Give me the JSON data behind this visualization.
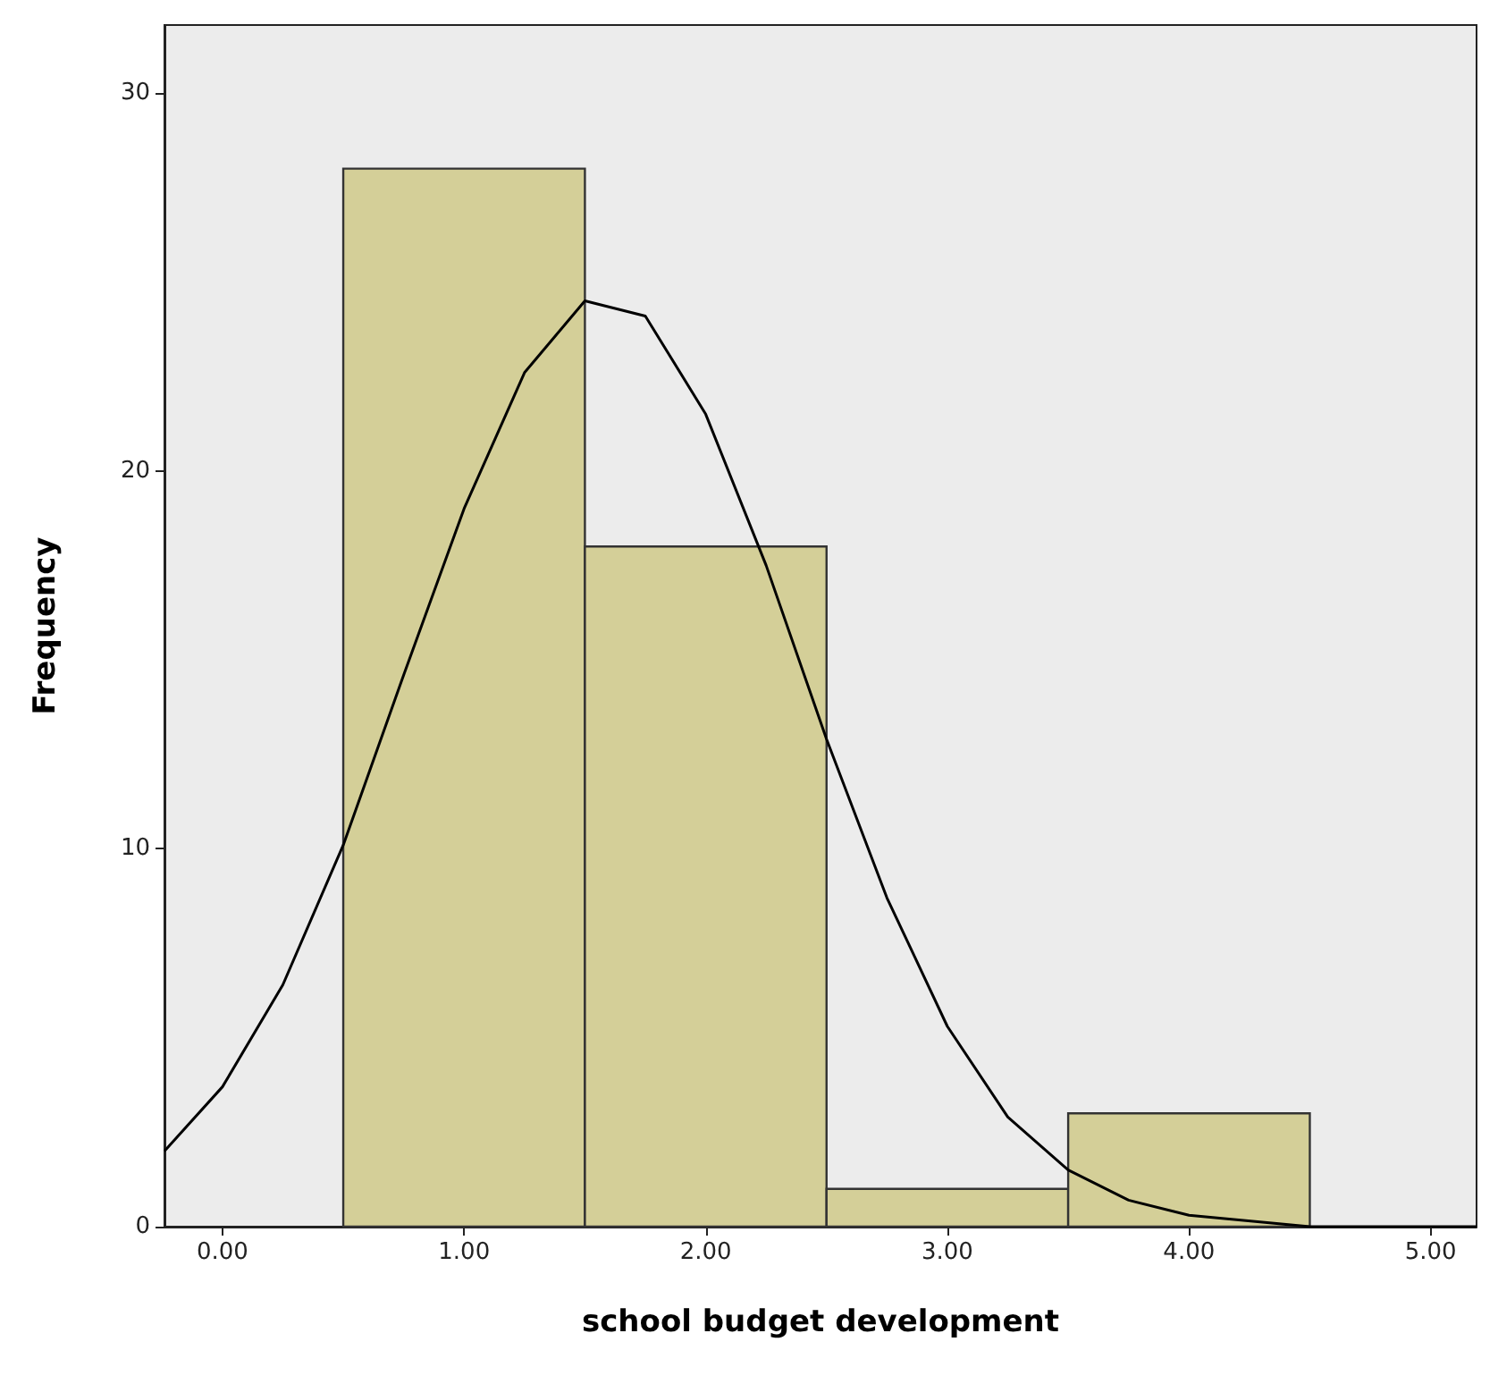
{
  "chart_data": {
    "type": "histogram",
    "xlabel": "school budget development",
    "ylabel": "Frequency",
    "bins": [
      0.5,
      1.5,
      2.5,
      3.5,
      4.5
    ],
    "values": [
      28,
      18,
      1,
      3
    ],
    "color": "#d4cf98",
    "xlim": [
      -0.24,
      5.19
    ],
    "xticks": [
      {
        "value": 0,
        "label": "0.00"
      },
      {
        "value": 1,
        "label": "1.00"
      },
      {
        "value": 2,
        "label": "2.00"
      },
      {
        "value": 3,
        "label": "3.00"
      },
      {
        "value": 4,
        "label": "4.00"
      },
      {
        "value": 5,
        "label": "5.00"
      }
    ],
    "ylim": [
      0,
      31.8
    ],
    "yticks": [
      0,
      10,
      20,
      30
    ],
    "grid": false,
    "marker": "none",
    "line_style": "solid",
    "series": [
      {
        "type": "line",
        "color": "#000000",
        "x": [
          -0.24,
          0,
          0.25,
          0.5,
          0.75,
          1,
          1.25,
          1.5,
          1.75,
          2,
          2.25,
          2.5,
          2.75,
          3,
          3.25,
          3.5,
          3.75,
          4,
          4.5,
          5,
          5.19
        ],
        "values": [
          2.0,
          3.7,
          6.4,
          10.1,
          14.6,
          19.0,
          22.6,
          24.5,
          24.1,
          21.5,
          17.5,
          12.9,
          8.7,
          5.3,
          2.9,
          1.5,
          0.7,
          0.3,
          0.0,
          0.0,
          0.0
        ]
      }
    ]
  }
}
